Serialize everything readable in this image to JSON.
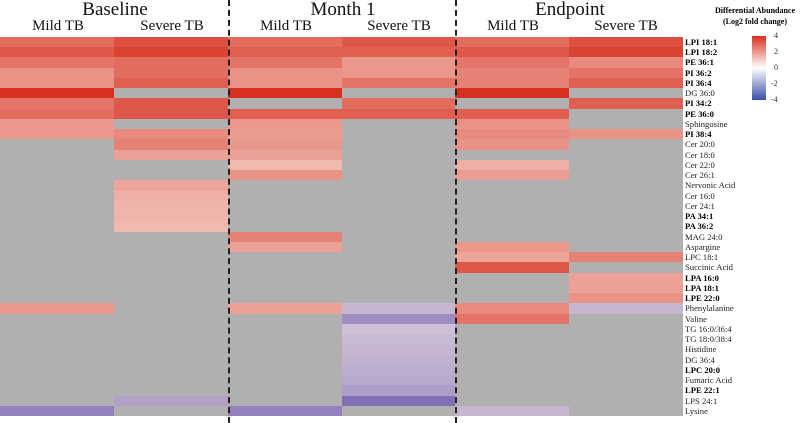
{
  "chart_data": {
    "type": "heatmap",
    "groups": [
      "Baseline",
      "Month 1",
      "Endpoint"
    ],
    "columns": [
      "Mild TB",
      "Severe TB",
      "Mild TB",
      "Severe TB",
      "Mild TB",
      "Severe TB"
    ],
    "rows": [
      "LPI 18:1",
      "LPI 18:2",
      "PE 36:1",
      "PI 36:2",
      "PI 36:4",
      "DG 36:0",
      "PI 34:2",
      "PE 36:0",
      "Sphingosine",
      "PI 38:4",
      "Cer 20:0",
      "Cer 18:0",
      "Cer 22:0",
      "Cer 26:1",
      "Nervonic Acid",
      "Cer 16:0",
      "Cer 24:1",
      "PA 34:1",
      "PA 36:2",
      "MAG 24:0",
      "Aspargine",
      "LPC 18:1",
      "Succinic Acid",
      "LPA 16:0",
      "LPA 18:1",
      "LPE 22:0",
      "Phenylalanine",
      "Valine",
      "TG 16:0/36:4",
      "TG 18:0/38:4",
      "Histidine",
      "DG 36:4",
      "LPC 20:0",
      "Fumaric Acid",
      "LPE 22:1",
      "LPS 24:1",
      "Lysine"
    ],
    "bold_rows": [
      "LPI 18:1",
      "LPI 18:2",
      "PE 36:1",
      "PI 36:2",
      "PI 36:4",
      "PI 34:2",
      "PE 36:0",
      "PI 38:4",
      "PA 34:1",
      "PA 36:2",
      "LPA 16:0",
      "LPA 18:1",
      "LPE 22:0",
      "LPC 20:0",
      "LPE 22:1"
    ],
    "values": [
      [
        2.5,
        3.2,
        2.5,
        3.0,
        2.5,
        3.2
      ],
      [
        3.0,
        3.5,
        2.8,
        2.8,
        3.0,
        3.5
      ],
      [
        2.3,
        2.5,
        2.3,
        1.5,
        2.3,
        1.8
      ],
      [
        1.6,
        2.5,
        1.6,
        1.5,
        2.0,
        2.3
      ],
      [
        1.6,
        2.8,
        1.6,
        2.3,
        2.0,
        2.8
      ],
      [
        4.0,
        null,
        4.0,
        null,
        4.0,
        null
      ],
      [
        2.3,
        3.0,
        null,
        2.5,
        null,
        2.8
      ],
      [
        2.5,
        3.0,
        2.8,
        2.8,
        2.8,
        null
      ],
      [
        1.5,
        null,
        1.5,
        null,
        1.6,
        null
      ],
      [
        1.5,
        1.8,
        1.4,
        null,
        1.8,
        1.6
      ],
      [
        null,
        2.0,
        1.5,
        null,
        1.6,
        null
      ],
      [
        null,
        1.3,
        1.3,
        null,
        null,
        null
      ],
      [
        null,
        null,
        0.8,
        null,
        1.0,
        null
      ],
      [
        null,
        null,
        1.6,
        null,
        1.4,
        null
      ],
      [
        null,
        1.2,
        null,
        null,
        null,
        null
      ],
      [
        null,
        1.0,
        null,
        null,
        null,
        null
      ],
      [
        null,
        0.9,
        null,
        null,
        null,
        null
      ],
      [
        null,
        0.9,
        null,
        null,
        null,
        null
      ],
      [
        null,
        0.8,
        null,
        null,
        null,
        null
      ],
      [
        null,
        null,
        2.0,
        null,
        null,
        null
      ],
      [
        null,
        null,
        1.3,
        null,
        1.5,
        null
      ],
      [
        null,
        null,
        null,
        null,
        1.2,
        2.0
      ],
      [
        null,
        null,
        null,
        null,
        3.0,
        null
      ],
      [
        null,
        null,
        null,
        null,
        null,
        1.3
      ],
      [
        null,
        null,
        null,
        null,
        null,
        1.3
      ],
      [
        null,
        null,
        null,
        null,
        null,
        1.6
      ],
      [
        1.5,
        null,
        1.3,
        -1.0,
        1.8,
        -1.0
      ],
      [
        null,
        null,
        null,
        -2.0,
        2.3,
        null
      ],
      [
        null,
        null,
        null,
        -0.8,
        null,
        null
      ],
      [
        null,
        null,
        null,
        -0.9,
        null,
        null
      ],
      [
        null,
        null,
        null,
        -1.0,
        null,
        null
      ],
      [
        null,
        null,
        null,
        -1.1,
        null,
        null
      ],
      [
        null,
        null,
        null,
        -1.2,
        null,
        null
      ],
      [
        null,
        null,
        null,
        -1.3,
        null,
        null
      ],
      [
        null,
        null,
        null,
        -1.6,
        null,
        null
      ],
      [
        null,
        -1.5,
        null,
        -2.8,
        null,
        null
      ],
      [
        -2.3,
        null,
        -2.3,
        null,
        -1.0,
        null
      ]
    ],
    "legend": {
      "title_line1": "Differential Abundance",
      "title_line2": "(Log2 fold change)",
      "ticks": [
        "4",
        "2",
        "0",
        "-2",
        "-4"
      ],
      "range": [
        -4,
        4
      ],
      "placement": "top-right"
    },
    "colors": {
      "high": "#d7301f",
      "mid": "#ffffff",
      "low": "#5b45a5",
      "na": "#b0b0b0"
    }
  }
}
